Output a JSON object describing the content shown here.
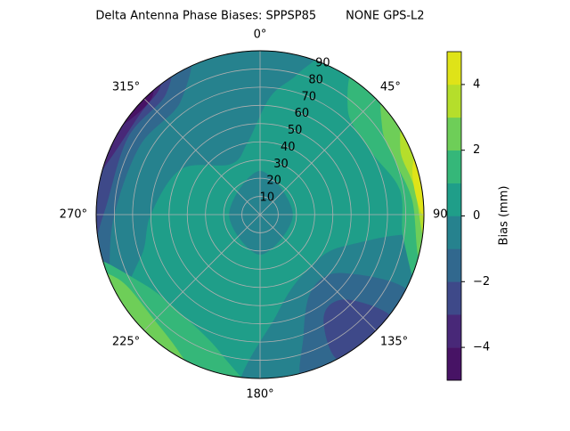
{
  "chart_data": {
    "type": "polar-contour",
    "title": "Delta Antenna Phase Biases: SPPSP85        NONE GPS-L2",
    "thetaticks": [
      {
        "value": 0,
        "label": "0°"
      },
      {
        "value": 45,
        "label": "45°"
      },
      {
        "value": 90,
        "label": "90"
      },
      {
        "value": 135,
        "label": "135°"
      },
      {
        "value": 180,
        "label": "180°"
      },
      {
        "value": 225,
        "label": "225°"
      },
      {
        "value": 270,
        "label": "270°"
      },
      {
        "value": 315,
        "label": "315°"
      }
    ],
    "rlim": [
      0,
      90
    ],
    "rticks": [
      10,
      20,
      30,
      40,
      50,
      60,
      70,
      80,
      90
    ],
    "grid": true,
    "levels": [
      -5,
      -4,
      -3,
      -2,
      -1,
      0,
      1,
      2,
      3,
      4,
      5
    ],
    "colors": [
      "#471365",
      "#482878",
      "#3e4989",
      "#31688e",
      "#26828e",
      "#1f9e89",
      "#35b779",
      "#6ece58",
      "#b5de2b",
      "#dfe318"
    ],
    "colorbar_label": "Bias (mm)",
    "clim": [
      -5,
      5
    ],
    "cticks": [
      {
        "value": -4,
        "label": "−4"
      },
      {
        "value": -2,
        "label": "−2"
      },
      {
        "value": 0,
        "label": "0"
      },
      {
        "value": 2,
        "label": "2"
      },
      {
        "value": 4,
        "label": "4"
      }
    ]
  }
}
